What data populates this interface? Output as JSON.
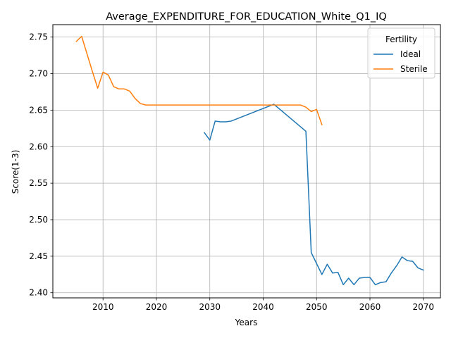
{
  "chart_data": {
    "type": "line",
    "title": "Average_EXPENDITURE_FOR_EDUCATION_White_Q1_IQ",
    "xlabel": "Years",
    "ylabel": "Score(1-3)",
    "xlim": [
      2000.6,
      2073.2
    ],
    "ylim": [
      2.393,
      2.767
    ],
    "xticks": [
      2010,
      2020,
      2030,
      2040,
      2050,
      2060,
      2070
    ],
    "xtick_labels": [
      "2010",
      "2020",
      "2030",
      "2040",
      "2050",
      "2060",
      "2070"
    ],
    "yticks": [
      2.4,
      2.45,
      2.5,
      2.55,
      2.6,
      2.65,
      2.7,
      2.75
    ],
    "ytick_labels": [
      "2.40",
      "2.45",
      "2.50",
      "2.55",
      "2.60",
      "2.65",
      "2.70",
      "2.75"
    ],
    "grid": true,
    "legend": {
      "title": "Fertility",
      "position": "top-right"
    },
    "series": [
      {
        "name": "Ideal",
        "color": "#1f77b4",
        "x": [
          2029,
          2030,
          2031,
          2032,
          2033,
          2034,
          2042,
          2048,
          2049,
          2050,
          2051,
          2052,
          2053,
          2054,
          2055,
          2056,
          2057,
          2058,
          2059,
          2060,
          2061,
          2062,
          2063,
          2064,
          2065,
          2066,
          2067,
          2068,
          2069,
          2070
        ],
        "y": [
          2.619,
          2.609,
          2.635,
          2.634,
          2.634,
          2.635,
          2.658,
          2.621,
          2.455,
          2.44,
          2.425,
          2.439,
          2.427,
          2.428,
          2.411,
          2.42,
          2.411,
          2.42,
          2.421,
          2.421,
          2.411,
          2.414,
          2.415,
          2.427,
          2.437,
          2.449,
          2.444,
          2.443,
          2.434,
          2.431
        ]
      },
      {
        "name": "Sterile",
        "color": "#ff7f0e",
        "x": [
          2005,
          2006,
          2007,
          2008,
          2009,
          2010,
          2011,
          2012,
          2013,
          2014,
          2015,
          2016,
          2017,
          2018,
          2019,
          2020,
          2025,
          2030,
          2035,
          2040,
          2045,
          2047,
          2048,
          2049,
          2050,
          2051
        ],
        "y": [
          2.744,
          2.751,
          2.727,
          2.703,
          2.68,
          2.702,
          2.698,
          2.682,
          2.679,
          2.679,
          2.676,
          2.666,
          2.659,
          2.657,
          2.657,
          2.657,
          2.657,
          2.657,
          2.657,
          2.657,
          2.657,
          2.657,
          2.654,
          2.648,
          2.651,
          2.63
        ]
      }
    ]
  }
}
